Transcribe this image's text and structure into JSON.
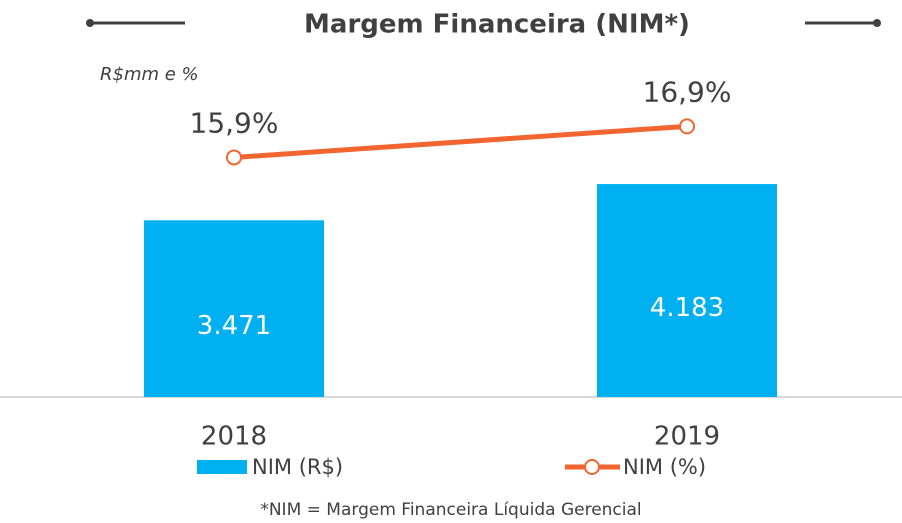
{
  "chart_data": {
    "type": "bar_line",
    "title": "Margem Financeira (NIM*)",
    "subtitle": "R$mm e %",
    "footnote": "*NIM = Margem Financeira Líquida Gerencial",
    "categories": [
      "2018",
      "2019"
    ],
    "ylim": [
      0,
      5500
    ],
    "y2lim": [
      8.2,
      17.2
    ],
    "series": [
      {
        "name": "NIM (R$)",
        "type": "bar",
        "color": "#00b0f0",
        "values": [
          3471,
          4183
        ],
        "value_labels": [
          "3.471",
          "4.183"
        ]
      },
      {
        "name": "NIM (%)",
        "type": "line",
        "axis": "y2",
        "color": "#f26531",
        "values": [
          15.9,
          16.9
        ],
        "value_labels": [
          "15,9%",
          "16,9%"
        ]
      }
    ]
  }
}
